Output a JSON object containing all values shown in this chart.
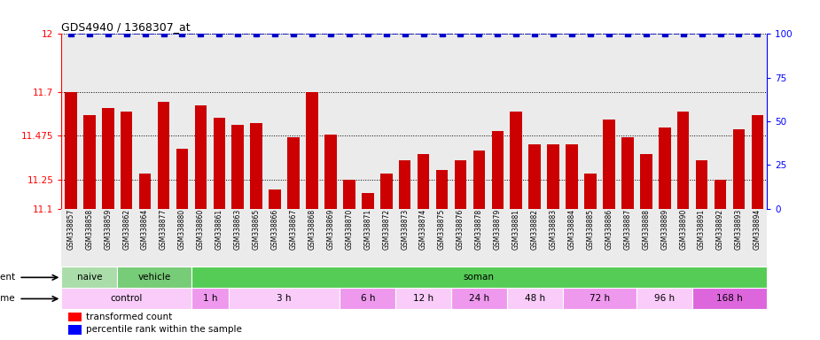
{
  "title": "GDS4940 / 1368307_at",
  "samples": [
    "GSM338857",
    "GSM338858",
    "GSM338859",
    "GSM338862",
    "GSM338864",
    "GSM338877",
    "GSM338880",
    "GSM338860",
    "GSM338861",
    "GSM338863",
    "GSM338865",
    "GSM338866",
    "GSM338867",
    "GSM338868",
    "GSM338869",
    "GSM338870",
    "GSM338871",
    "GSM338872",
    "GSM338873",
    "GSM338874",
    "GSM338875",
    "GSM338876",
    "GSM338878",
    "GSM338879",
    "GSM338881",
    "GSM338882",
    "GSM338883",
    "GSM338884",
    "GSM338885",
    "GSM338886",
    "GSM338887",
    "GSM338888",
    "GSM338889",
    "GSM338890",
    "GSM338891",
    "GSM338892",
    "GSM338893",
    "GSM338894"
  ],
  "bar_values": [
    11.7,
    11.58,
    11.62,
    11.6,
    11.28,
    11.65,
    11.41,
    11.63,
    11.57,
    11.53,
    11.54,
    11.2,
    11.47,
    11.7,
    11.48,
    11.25,
    11.18,
    11.28,
    11.35,
    11.38,
    11.3,
    11.35,
    11.4,
    11.5,
    11.6,
    11.43,
    11.43,
    11.43,
    11.28,
    11.56,
    11.47,
    11.38,
    11.52,
    11.6,
    11.35,
    11.25,
    11.51,
    11.58
  ],
  "baseline": 11.1,
  "ylim_left": [
    11.1,
    12.0
  ],
  "ylim_right": [
    0,
    100
  ],
  "yticks_left": [
    11.1,
    11.25,
    11.475,
    11.7,
    12.0
  ],
  "ytick_labels_left": [
    "11.1",
    "11.25",
    "11.475",
    "11.7",
    "12"
  ],
  "yticks_right": [
    0,
    25,
    50,
    75,
    100
  ],
  "ytick_labels_right": [
    "0",
    "25",
    "50",
    "75",
    "100 "
  ],
  "bar_color": "#cc0000",
  "percentile_color": "#0000cc",
  "bg_color": "#ebebeb",
  "agent_row": [
    {
      "label": "naive",
      "start": 0,
      "end": 3,
      "color": "#aaddaa"
    },
    {
      "label": "vehicle",
      "start": 3,
      "end": 7,
      "color": "#77cc77"
    },
    {
      "label": "soman",
      "start": 7,
      "end": 38,
      "color": "#55cc55"
    }
  ],
  "time_row": [
    {
      "label": "control",
      "start": 0,
      "end": 7,
      "color": "#f9ccf9"
    },
    {
      "label": "1 h",
      "start": 7,
      "end": 9,
      "color": "#ee99ee"
    },
    {
      "label": "3 h",
      "start": 9,
      "end": 15,
      "color": "#f9ccf9"
    },
    {
      "label": "6 h",
      "start": 15,
      "end": 18,
      "color": "#ee99ee"
    },
    {
      "label": "12 h",
      "start": 18,
      "end": 21,
      "color": "#f9ccf9"
    },
    {
      "label": "24 h",
      "start": 21,
      "end": 24,
      "color": "#ee99ee"
    },
    {
      "label": "48 h",
      "start": 24,
      "end": 27,
      "color": "#f9ccf9"
    },
    {
      "label": "72 h",
      "start": 27,
      "end": 31,
      "color": "#ee99ee"
    },
    {
      "label": "96 h",
      "start": 31,
      "end": 34,
      "color": "#f9ccf9"
    },
    {
      "label": "168 h",
      "start": 34,
      "end": 38,
      "color": "#dd66dd"
    }
  ]
}
